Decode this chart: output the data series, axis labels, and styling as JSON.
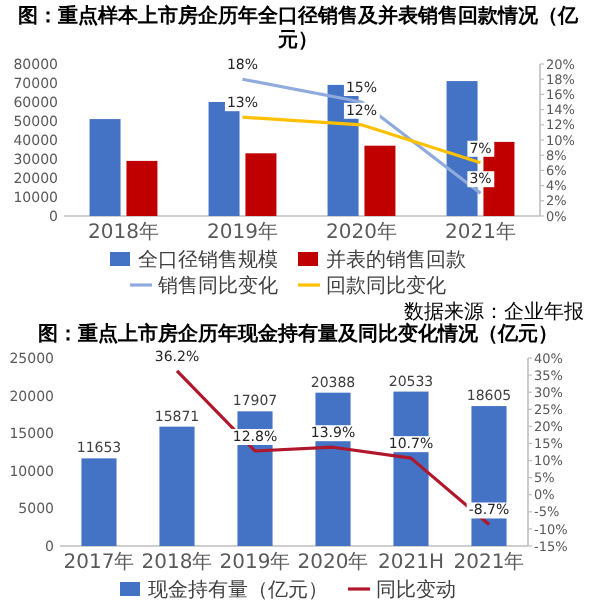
{
  "chart_data": [
    {
      "type": "bar",
      "title": "图：重点样本上市房企历年全口径销售及并表销售回款情况（亿元）",
      "categories": [
        "2018年",
        "2019年",
        "2020年",
        "2021年"
      ],
      "series": [
        {
          "name": "全口径销售规模",
          "color": "#4472c4",
          "values": [
            51000,
            60000,
            69000,
            71000
          ]
        },
        {
          "name": "并表的销售回款",
          "color": "#c00000",
          "values": [
            29000,
            33000,
            37000,
            39000
          ]
        },
        {
          "name": "销售同比变化",
          "type": "line",
          "axis": "y2",
          "color": "#8faadc",
          "values": [
            null,
            18,
            15,
            3
          ],
          "value_labels": [
            null,
            "18%",
            "15%",
            "3%"
          ]
        },
        {
          "name": "回款同比变化",
          "type": "line",
          "axis": "y2",
          "color": "#ffc000",
          "values": [
            null,
            13,
            12,
            7
          ],
          "value_labels": [
            null,
            "13%",
            "12%",
            "7%"
          ]
        }
      ],
      "ylim": [
        0,
        80000
      ],
      "yticks": [
        0,
        10000,
        20000,
        30000,
        40000,
        50000,
        60000,
        70000,
        80000
      ],
      "y2lim": [
        0,
        20
      ],
      "y2ticks": [
        {
          "value": 0,
          "label": "0%"
        },
        {
          "value": 2,
          "label": "2%"
        },
        {
          "value": 4,
          "label": "4%"
        },
        {
          "value": 6,
          "label": "6%"
        },
        {
          "value": 8,
          "label": "8%"
        },
        {
          "value": 10,
          "label": "10%"
        },
        {
          "value": 12,
          "label": "12%"
        },
        {
          "value": 14,
          "label": "14%"
        },
        {
          "value": 16,
          "label": "16%"
        },
        {
          "value": 18,
          "label": "18%"
        },
        {
          "value": 20,
          "label": "20%"
        }
      ],
      "legend": "bottom"
    },
    {
      "type": "bar",
      "title": "图：重点上市房企历年现金持有量及同比变化情况（亿元）",
      "annotations": [
        "数据来源：企业年报"
      ],
      "categories": [
        "2017年",
        "2018年",
        "2019年",
        "2020年",
        "2021H",
        "2021年"
      ],
      "series": [
        {
          "name": "现金持有量（亿元）",
          "color": "#4472c4",
          "values": [
            11653,
            15871,
            17907,
            20388,
            20533,
            18605
          ],
          "value_labels": [
            "11653",
            "15871",
            "17907",
            "20388",
            "20533",
            "18605"
          ]
        },
        {
          "name": "同比变动",
          "type": "line",
          "axis": "y2",
          "color": "#b0172a",
          "values": [
            null,
            36.2,
            12.8,
            13.9,
            10.7,
            -8.7
          ],
          "value_labels": [
            null,
            "36.2%",
            "12.8%",
            "13.9%",
            "10.7%",
            "-8.7%"
          ]
        }
      ],
      "ylim": [
        0,
        25000
      ],
      "yticks": [
        0,
        5000,
        10000,
        15000,
        20000,
        25000
      ],
      "y2lim": [
        -15,
        40
      ],
      "y2ticks": [
        {
          "value": -15,
          "label": "-15%"
        },
        {
          "value": -10,
          "label": "-10%"
        },
        {
          "value": -5,
          "label": "-5%"
        },
        {
          "value": 0,
          "label": "0%"
        },
        {
          "value": 5,
          "label": "5%"
        },
        {
          "value": 10,
          "label": "10%"
        },
        {
          "value": 15,
          "label": "15%"
        },
        {
          "value": 20,
          "label": "20%"
        },
        {
          "value": 25,
          "label": "25%"
        },
        {
          "value": 30,
          "label": "30%"
        },
        {
          "value": 35,
          "label": "35%"
        },
        {
          "value": 40,
          "label": "40%"
        }
      ],
      "legend": "bottom"
    }
  ]
}
